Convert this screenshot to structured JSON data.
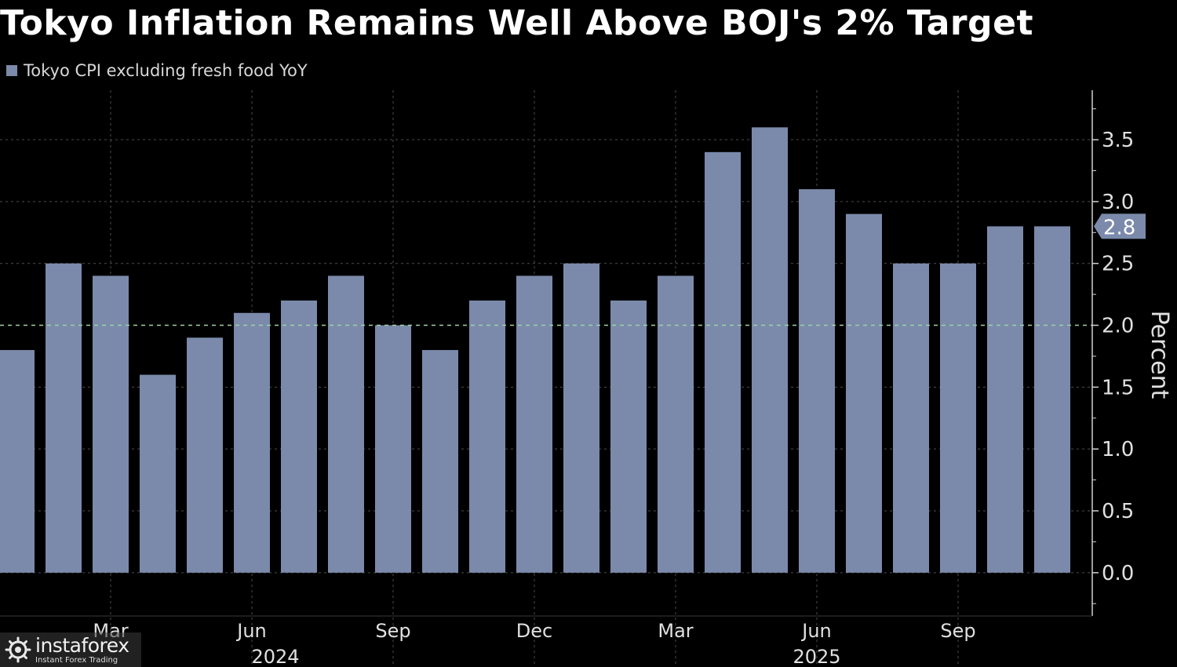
{
  "chart_data": {
    "type": "bar",
    "title": "Tokyo Inflation Remains Well Above BOJ's 2% Target",
    "legend": [
      "Tokyo CPI excluding fresh food YoY"
    ],
    "ylabel": "Percent",
    "ylim": [
      -0.35,
      3.9
    ],
    "yticks": [
      "0.0",
      "0.5",
      "1.0",
      "1.5",
      "2.0",
      "2.5",
      "3.0",
      "3.5"
    ],
    "reference_line": 2.0,
    "last_value_label": "2.8",
    "xticks": [
      {
        "label": "Mar",
        "index": 2
      },
      {
        "label": "Jun",
        "index": 5
      },
      {
        "label": "Sep",
        "index": 8
      },
      {
        "label": "Dec",
        "index": 11
      },
      {
        "label": "Mar",
        "index": 14
      },
      {
        "label": "Jun",
        "index": 17
      },
      {
        "label": "Sep",
        "index": 20
      }
    ],
    "years": [
      {
        "label": "2024",
        "index": 5.5
      },
      {
        "label": "2025",
        "index": 17
      }
    ],
    "values": [
      1.8,
      2.5,
      2.4,
      1.6,
      1.9,
      2.1,
      2.2,
      2.4,
      2.0,
      1.8,
      2.2,
      2.4,
      2.5,
      2.2,
      2.4,
      3.4,
      3.6,
      3.1,
      2.9,
      2.5,
      2.5,
      2.8,
      2.8
    ],
    "colors": {
      "bar": "#7b8aab",
      "grid": "#4d4d4d",
      "target": "#9fd0a6",
      "axis": "#d0d0d0"
    }
  },
  "watermark": {
    "brand": "instaforex",
    "tagline": "Instant Forex Trading"
  }
}
